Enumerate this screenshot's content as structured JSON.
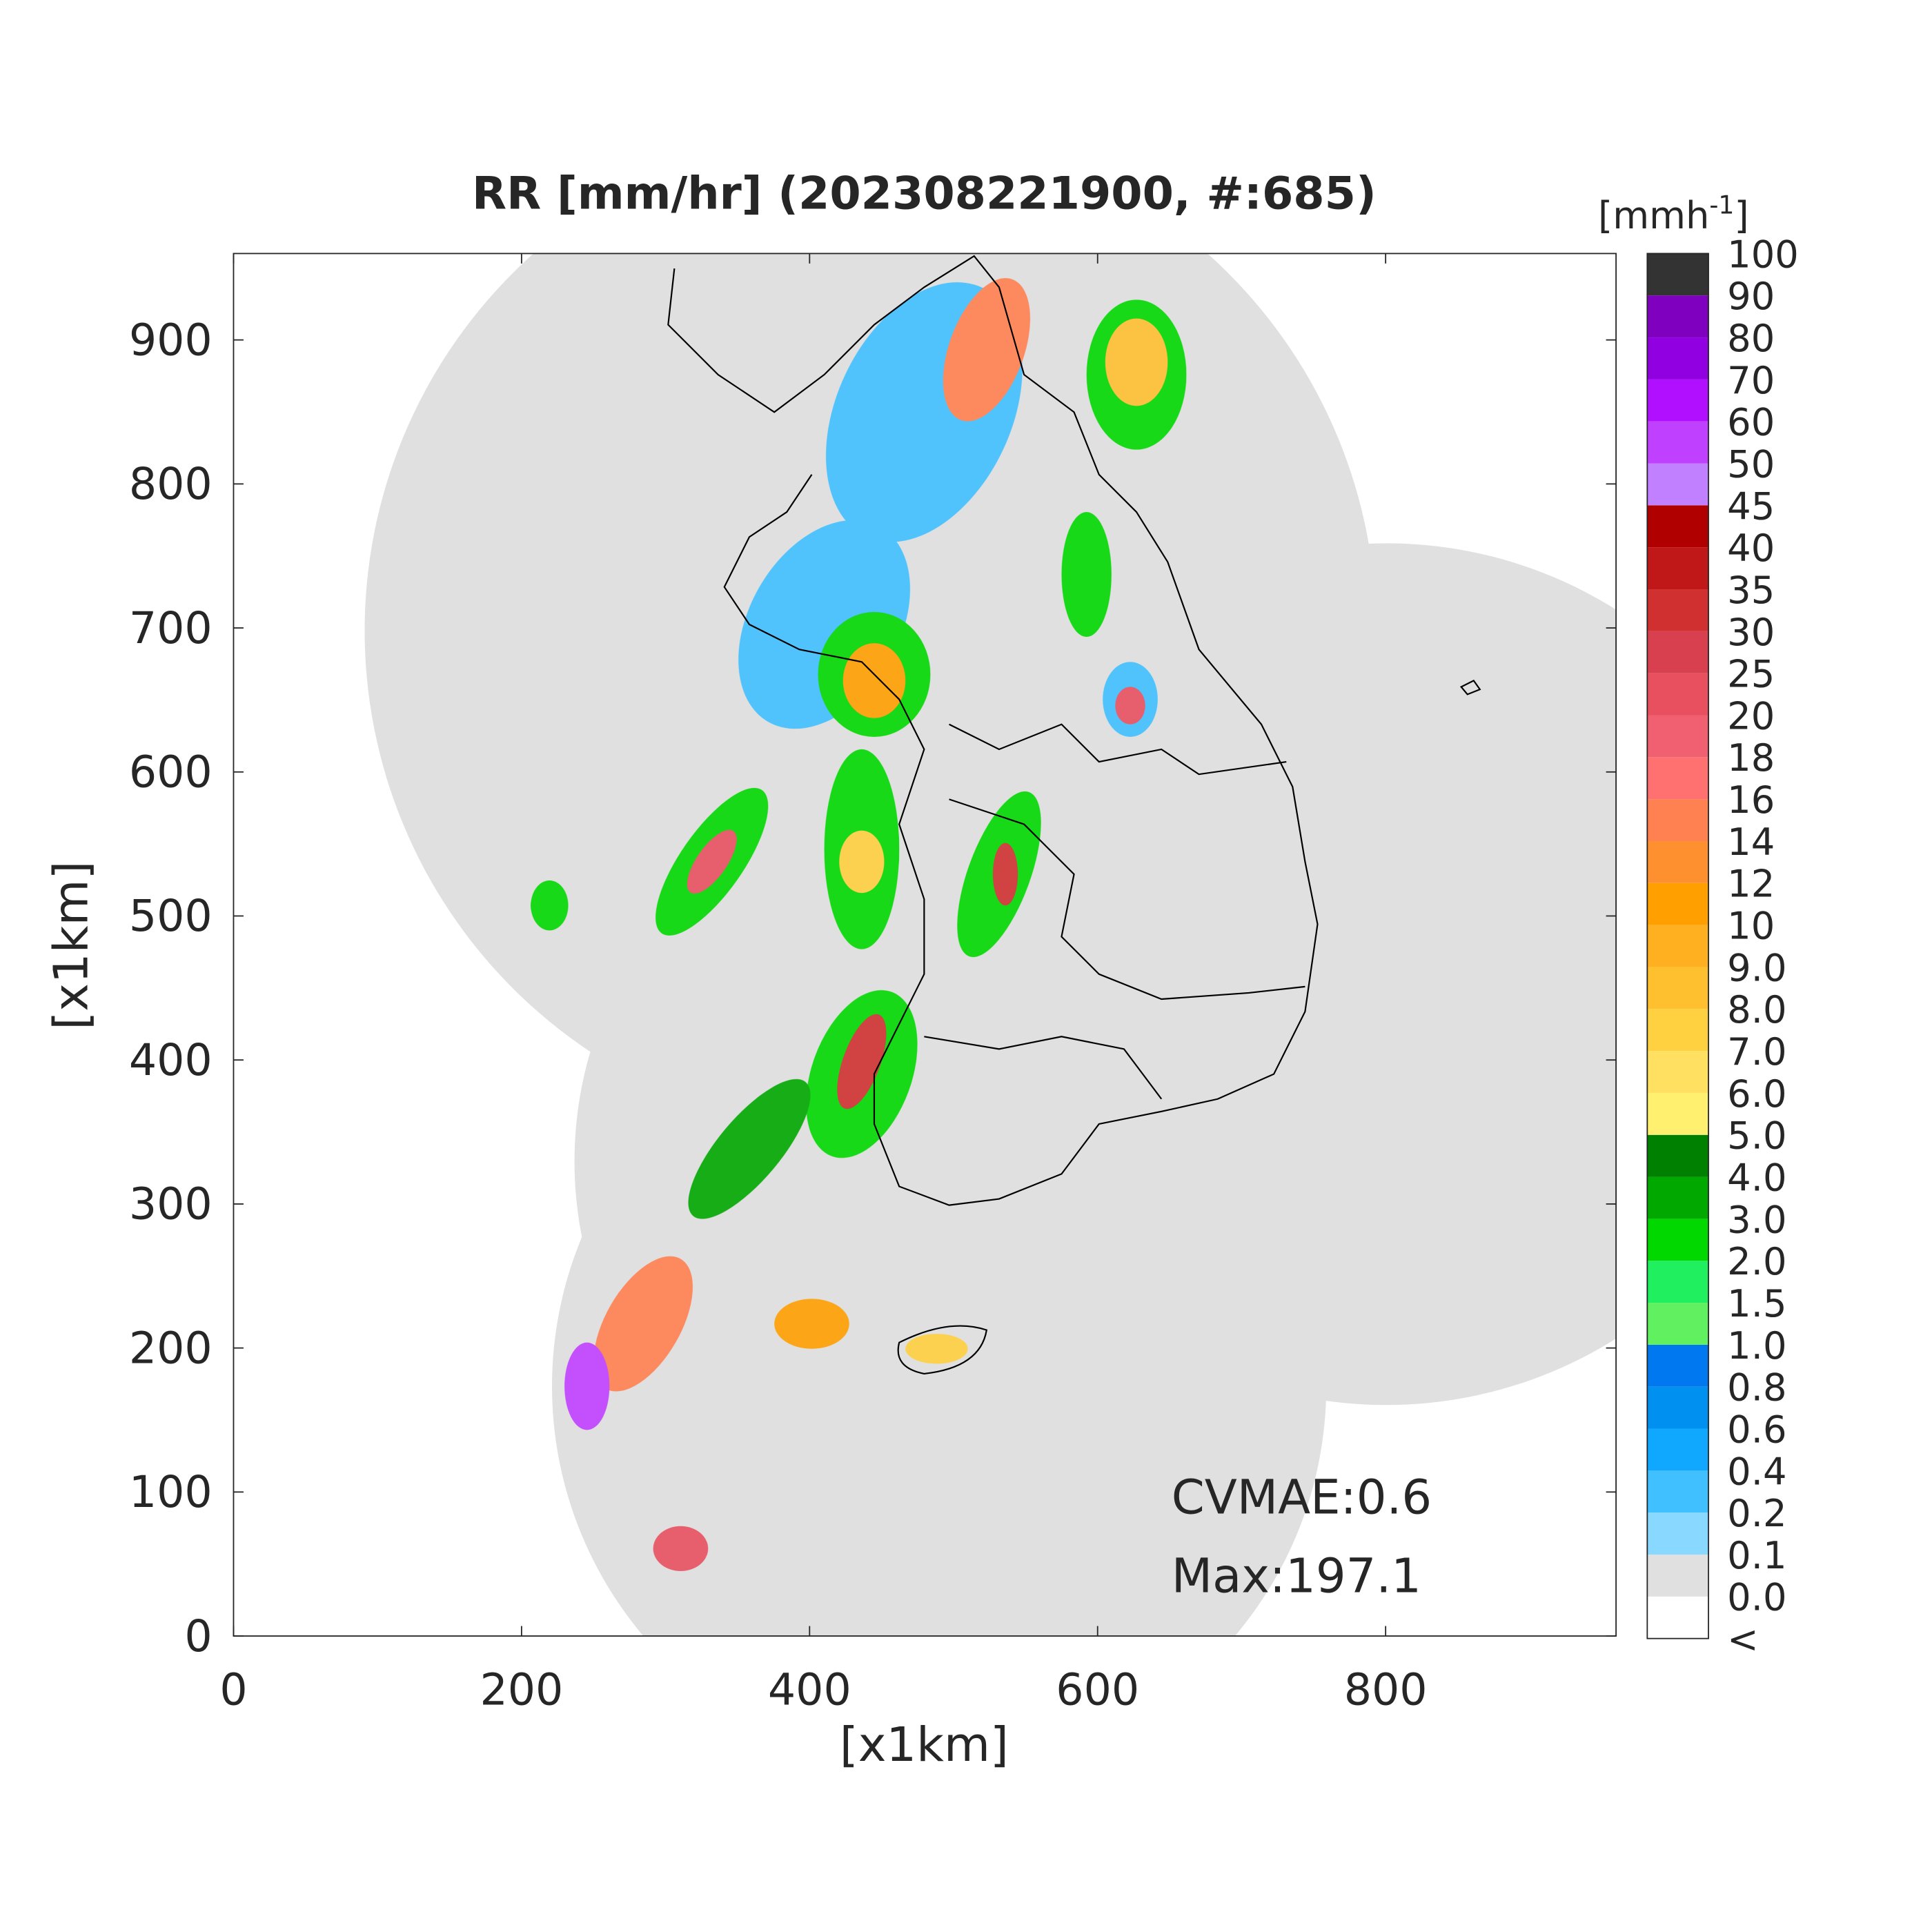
{
  "title": "RR [mm/hr] (202308221900, #:685)",
  "axes": {
    "xlabel": "[x1km]",
    "ylabel": "[x1km]",
    "xlim": [
      0,
      960
    ],
    "ylim": [
      0,
      960
    ],
    "xticks": [
      0,
      200,
      400,
      600,
      800
    ],
    "yticks": [
      0,
      100,
      200,
      300,
      400,
      500,
      600,
      700,
      800,
      900
    ]
  },
  "colorbar": {
    "unit": "[mmh",
    "unit_exponent": "-1",
    "unit_close": "]",
    "labels": [
      "<",
      "0.0",
      "0.1",
      "0.2",
      "0.4",
      "0.6",
      "0.8",
      "1.0",
      "1.5",
      "2.0",
      "3.0",
      "4.0",
      "5.0",
      "6.0",
      "7.0",
      "8.0",
      "9.0",
      "10",
      "12",
      "14",
      "16",
      "18",
      "20",
      "25",
      "30",
      "35",
      "40",
      "45",
      "50",
      "60",
      "70",
      "80",
      "90",
      "100"
    ],
    "colors": [
      "#ffffff",
      "#e0e0e0",
      "#88d8ff",
      "#40c0ff",
      "#10a8ff",
      "#0090f0",
      "#0078f0",
      "#60f060",
      "#20f060",
      "#00d800",
      "#00a800",
      "#008000",
      "#fff070",
      "#ffe060",
      "#ffd040",
      "#ffc030",
      "#ffb020",
      "#ffa000",
      "#ff9030",
      "#ff8050",
      "#ff7070",
      "#f06070",
      "#e85060",
      "#d84050",
      "#d03030",
      "#c01818",
      "#b00000",
      "#c080ff",
      "#c040ff",
      "#b010ff",
      "#9000e0",
      "#8000c0",
      "#333333"
    ]
  },
  "annotations": [
    "CVMAE:0.6",
    "Max:197.1"
  ]
}
